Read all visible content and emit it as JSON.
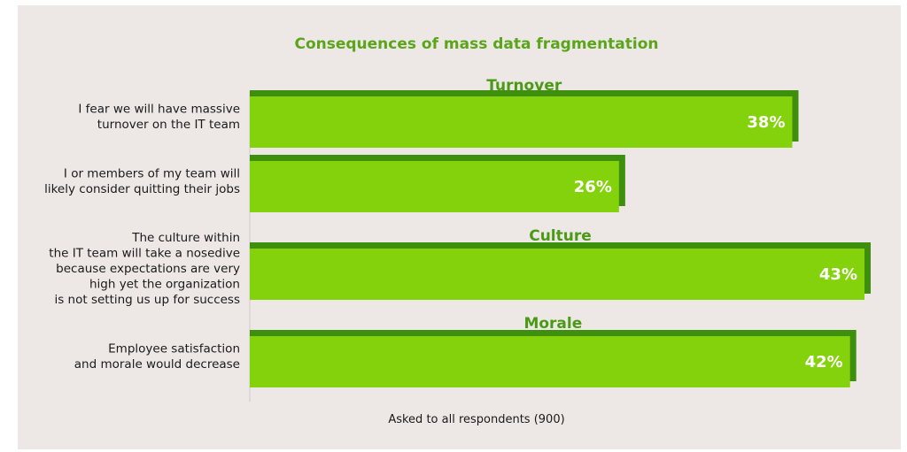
{
  "chart_data": {
    "type": "bar",
    "orientation": "horizontal",
    "title": "Consequences of mass data fragmentation",
    "footnote": "Asked to all respondents (900)",
    "xlim": [
      0,
      43
    ],
    "groups": [
      {
        "label": "Turnover",
        "items": [
          0,
          1
        ]
      },
      {
        "label": "Culture",
        "items": [
          2
        ]
      },
      {
        "label": "Morale",
        "items": [
          3
        ]
      }
    ],
    "categories": [
      [
        "I fear we will have massive",
        "turnover on the IT team"
      ],
      [
        "I or members of my team will",
        "likely consider quitting their jobs"
      ],
      [
        "The culture within",
        "the IT team will take a nosedive",
        "because expectations are very",
        "high yet the organization",
        "is not setting us up for success"
      ],
      [
        "Employee satisfaction",
        "and morale would decrease"
      ]
    ],
    "values": [
      38,
      26,
      43,
      42
    ],
    "value_labels": [
      "38%",
      "26%",
      "43%",
      "42%"
    ],
    "colors": {
      "bar": "#84d20b",
      "bar_shadow": "#3f8f0f",
      "title": "#5aa51a",
      "group_label": "#4a9a14"
    }
  }
}
